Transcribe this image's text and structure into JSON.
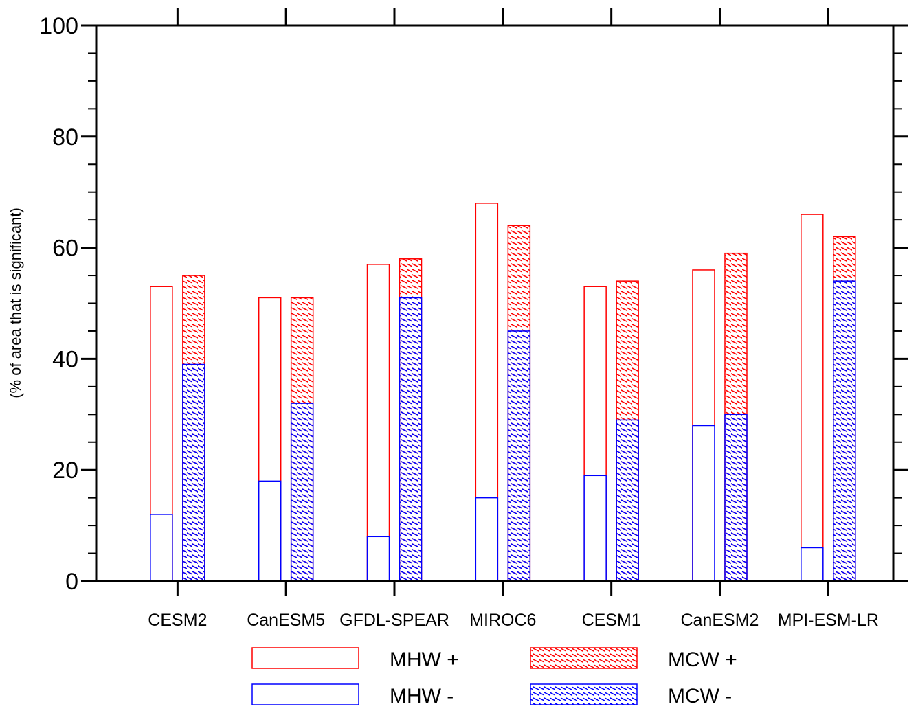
{
  "chart_data": {
    "type": "bar",
    "ylabel": "(% of area that is significant)",
    "xlabel": "",
    "ylim": [
      0,
      100
    ],
    "yticks": [
      "0",
      "20",
      "40",
      "60",
      "80",
      "100"
    ],
    "categories": [
      "CESM2",
      "CanESM5",
      "GFDL-SPEAR",
      "MIROC6",
      "CESM1",
      "CanESM2",
      "MPI-ESM-LR"
    ],
    "series": [
      {
        "name": "MHW +",
        "color": "#ff0000",
        "pattern": "none",
        "values": [
          53,
          51,
          57,
          68,
          53,
          56,
          66
        ]
      },
      {
        "name": "MHW -",
        "color": "#0000ff",
        "pattern": "none",
        "values": [
          12,
          18,
          8,
          15,
          19,
          28,
          6
        ]
      },
      {
        "name": "MCW +",
        "color": "#ff0000",
        "pattern": "hatch",
        "values": [
          55,
          51,
          58,
          64,
          54,
          59,
          62
        ]
      },
      {
        "name": "MCW -",
        "color": "#0000ff",
        "pattern": "hatch",
        "values": [
          39,
          32,
          51,
          45,
          29,
          30,
          54
        ]
      }
    ],
    "legend": [
      {
        "label": "MHW +",
        "color": "#ff0000",
        "pattern": "none"
      },
      {
        "label": "MCW +",
        "color": "#ff0000",
        "pattern": "hatch"
      },
      {
        "label": "MHW -",
        "color": "#0000ff",
        "pattern": "none"
      },
      {
        "label": "MCW -",
        "color": "#0000ff",
        "pattern": "hatch"
      }
    ]
  }
}
